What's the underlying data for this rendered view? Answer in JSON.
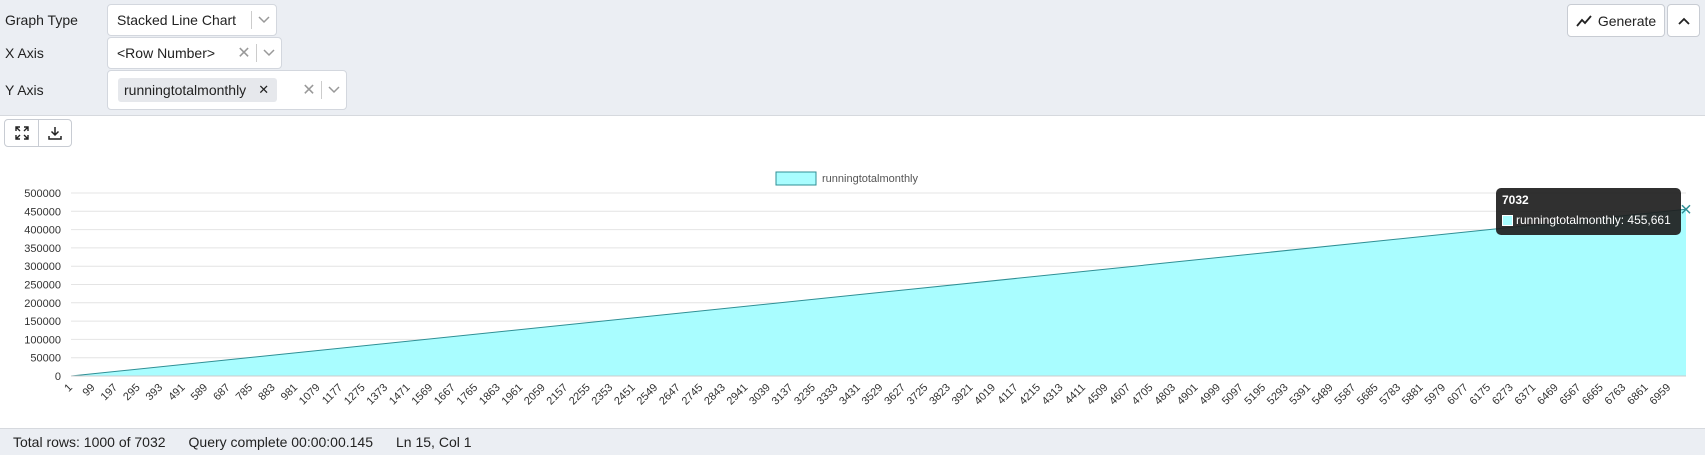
{
  "controls": {
    "graph_type": {
      "label": "Graph Type",
      "value": "Stacked Line Chart"
    },
    "x_axis": {
      "label": "X Axis",
      "value": "<Row Number>"
    },
    "y_axis": {
      "label": "Y Axis",
      "chip": "runningtotalmonthly"
    }
  },
  "toolbar": {
    "generate_label": "Generate",
    "collapse_icon": "chevron-up-icon",
    "fullscreen_icon": "expand-icon",
    "download_icon": "download-icon"
  },
  "colors": {
    "area_fill": "#a9fdff",
    "line": "#2f8f95",
    "grid": "#e4e4e4"
  },
  "chart_data": {
    "type": "area",
    "legend": [
      "runningtotalmonthly"
    ],
    "legend_position": "top-center",
    "series": [
      {
        "name": "runningtotalmonthly",
        "x": [
          1,
          7032
        ],
        "values": [
          0,
          455661
        ]
      }
    ],
    "ylim": [
      0,
      500000
    ],
    "yticks": [
      "500000",
      "450000",
      "400000",
      "350000",
      "300000",
      "250000",
      "200000",
      "150000",
      "100000",
      "50000",
      "0"
    ],
    "xticks": [
      "1",
      "99",
      "197",
      "295",
      "393",
      "491",
      "589",
      "687",
      "785",
      "883",
      "981",
      "1079",
      "1177",
      "1275",
      "1373",
      "1471",
      "1569",
      "1667",
      "1765",
      "1863",
      "1961",
      "2059",
      "2157",
      "2255",
      "2353",
      "2451",
      "2549",
      "2647",
      "2745",
      "2843",
      "2941",
      "3039",
      "3137",
      "3235",
      "3333",
      "3431",
      "3529",
      "3627",
      "3725",
      "3823",
      "3921",
      "4019",
      "4117",
      "4215",
      "4313",
      "4411",
      "4509",
      "4607",
      "4705",
      "4803",
      "4901",
      "4999",
      "5097",
      "5195",
      "5293",
      "5391",
      "5489",
      "5587",
      "5685",
      "5783",
      "5881",
      "5979",
      "6077",
      "6175",
      "6273",
      "6371",
      "6469",
      "6567",
      "6665",
      "6763",
      "6861",
      "6959"
    ],
    "grid": true,
    "tooltip": {
      "title": "7032",
      "text": "runningtotalmonthly: 455,661"
    }
  },
  "status": {
    "rows": "Total rows: 1000 of 7032",
    "query": "Query complete 00:00:00.145",
    "cursor": "Ln 15, Col 1"
  }
}
